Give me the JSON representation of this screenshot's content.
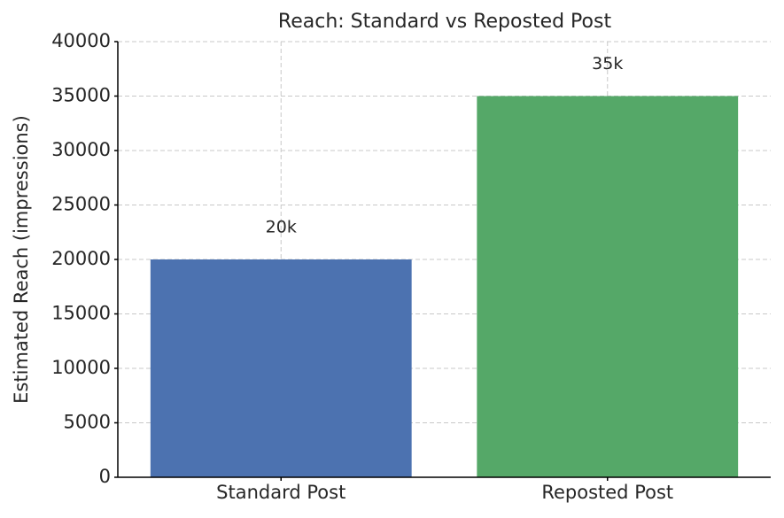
{
  "chart_data": {
    "type": "bar",
    "title": "Reach: Standard vs Reposted Post",
    "y_label": "Estimated Reach (impressions)",
    "categories": [
      "Standard Post",
      "Reposted Post"
    ],
    "values": [
      20000,
      35000
    ],
    "value_labels": [
      "20k",
      "35k"
    ],
    "colors": [
      "#4c72b0",
      "#55a868"
    ],
    "ylim": [
      0,
      40000
    ],
    "yticks": [
      0,
      5000,
      10000,
      15000,
      20000,
      25000,
      30000,
      35000,
      40000
    ],
    "grid": true
  }
}
